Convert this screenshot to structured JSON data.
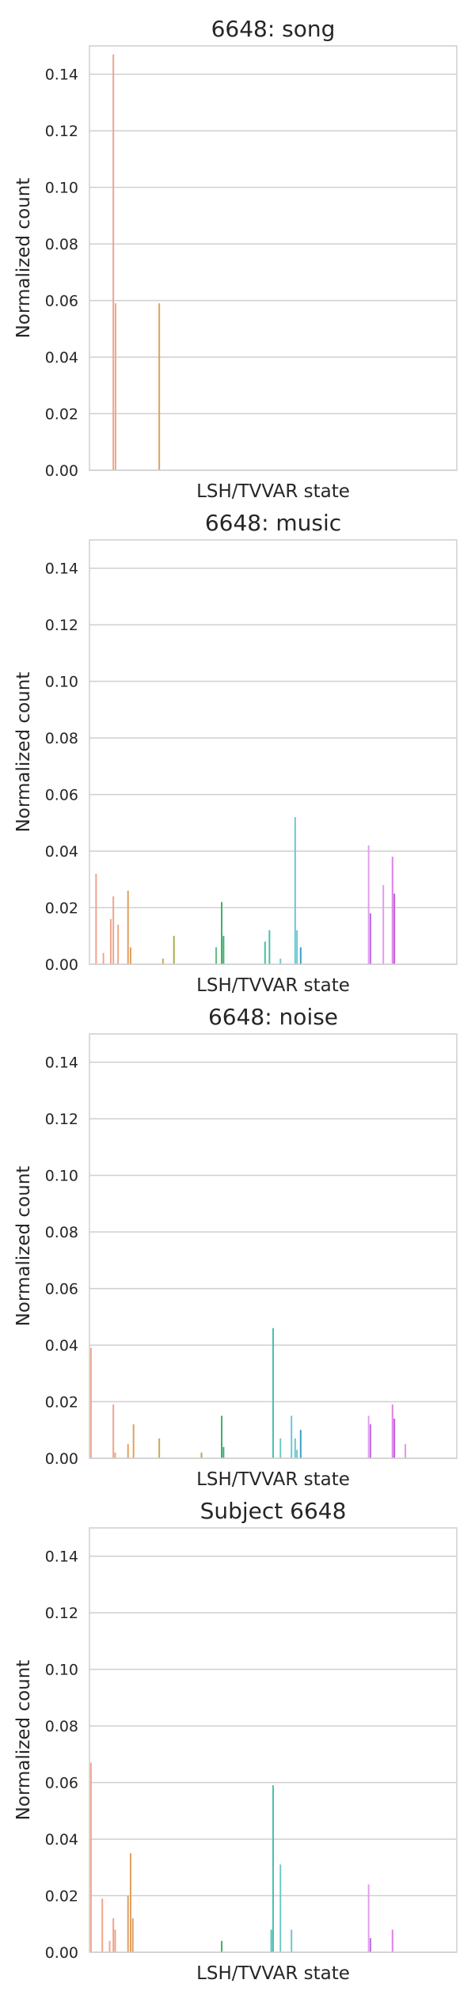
{
  "chart_data": [
    {
      "type": "bar",
      "title": "6648: song",
      "xlabel": "LSH/TVVAR state",
      "ylabel": "Normalized count",
      "ylim": [
        0,
        0.15
      ],
      "yticks": [
        "0.00",
        "0.02",
        "0.04",
        "0.06",
        "0.08",
        "0.10",
        "0.12",
        "0.14"
      ],
      "grid": true,
      "series": [
        {
          "x": 0.065,
          "value": 0.147,
          "color": "#f0a58c"
        },
        {
          "x": 0.071,
          "value": 0.059,
          "color": "#f0a58c"
        },
        {
          "x": 0.19,
          "value": 0.059,
          "color": "#e0a060"
        }
      ]
    },
    {
      "type": "bar",
      "title": "6648: music",
      "xlabel": "LSH/TVVAR state",
      "ylabel": "Normalized count",
      "ylim": [
        0,
        0.15
      ],
      "yticks": [
        "0.00",
        "0.02",
        "0.04",
        "0.06",
        "0.08",
        "0.10",
        "0.12",
        "0.14"
      ],
      "grid": true,
      "series": [
        {
          "x": 0.018,
          "value": 0.032,
          "color": "#f0a58c"
        },
        {
          "x": 0.038,
          "value": 0.004,
          "color": "#f0a58c"
        },
        {
          "x": 0.058,
          "value": 0.016,
          "color": "#f0a58c"
        },
        {
          "x": 0.065,
          "value": 0.024,
          "color": "#f0a58c"
        },
        {
          "x": 0.078,
          "value": 0.014,
          "color": "#f0a58c"
        },
        {
          "x": 0.105,
          "value": 0.026,
          "color": "#e0a060"
        },
        {
          "x": 0.112,
          "value": 0.006,
          "color": "#e0a060"
        },
        {
          "x": 0.2,
          "value": 0.002,
          "color": "#c9a85a"
        },
        {
          "x": 0.23,
          "value": 0.01,
          "color": "#a8ad4e"
        },
        {
          "x": 0.345,
          "value": 0.006,
          "color": "#5cbf78"
        },
        {
          "x": 0.36,
          "value": 0.022,
          "color": "#3daf6a"
        },
        {
          "x": 0.365,
          "value": 0.01,
          "color": "#3daf6a"
        },
        {
          "x": 0.478,
          "value": 0.008,
          "color": "#4cbfa8"
        },
        {
          "x": 0.49,
          "value": 0.012,
          "color": "#4cbfa8"
        },
        {
          "x": 0.52,
          "value": 0.002,
          "color": "#6cc8c8"
        },
        {
          "x": 0.56,
          "value": 0.052,
          "color": "#6cc8d0"
        },
        {
          "x": 0.565,
          "value": 0.012,
          "color": "#6cc8d0"
        },
        {
          "x": 0.575,
          "value": 0.006,
          "color": "#3aa0c8"
        },
        {
          "x": 0.76,
          "value": 0.042,
          "color": "#e09ef0"
        },
        {
          "x": 0.765,
          "value": 0.018,
          "color": "#c070e0"
        },
        {
          "x": 0.8,
          "value": 0.028,
          "color": "#e09ef0"
        },
        {
          "x": 0.825,
          "value": 0.038,
          "color": "#e080e8"
        },
        {
          "x": 0.83,
          "value": 0.025,
          "color": "#c060d8"
        }
      ]
    },
    {
      "type": "bar",
      "title": "6648: noise",
      "xlabel": "LSH/TVVAR state",
      "ylabel": "Normalized count",
      "ylim": [
        0,
        0.15
      ],
      "yticks": [
        "0.00",
        "0.02",
        "0.04",
        "0.06",
        "0.08",
        "0.10",
        "0.12",
        "0.14"
      ],
      "grid": true,
      "series": [
        {
          "x": 0.004,
          "value": 0.039,
          "color": "#f0a58c"
        },
        {
          "x": 0.065,
          "value": 0.019,
          "color": "#f0a58c"
        },
        {
          "x": 0.07,
          "value": 0.002,
          "color": "#f0a58c"
        },
        {
          "x": 0.105,
          "value": 0.005,
          "color": "#e0a060"
        },
        {
          "x": 0.12,
          "value": 0.012,
          "color": "#e0a060"
        },
        {
          "x": 0.19,
          "value": 0.007,
          "color": "#c9a85a"
        },
        {
          "x": 0.305,
          "value": 0.002,
          "color": "#a8ad4e"
        },
        {
          "x": 0.36,
          "value": 0.015,
          "color": "#3daf6a"
        },
        {
          "x": 0.365,
          "value": 0.004,
          "color": "#3daf6a"
        },
        {
          "x": 0.5,
          "value": 0.046,
          "color": "#4cbfb0"
        },
        {
          "x": 0.52,
          "value": 0.007,
          "color": "#6cc8c8"
        },
        {
          "x": 0.55,
          "value": 0.015,
          "color": "#6cc8d0"
        },
        {
          "x": 0.56,
          "value": 0.007,
          "color": "#6cc8d0"
        },
        {
          "x": 0.565,
          "value": 0.003,
          "color": "#6cc8d0"
        },
        {
          "x": 0.575,
          "value": 0.01,
          "color": "#3aa0c8"
        },
        {
          "x": 0.76,
          "value": 0.015,
          "color": "#e09ef0"
        },
        {
          "x": 0.765,
          "value": 0.012,
          "color": "#c070e0"
        },
        {
          "x": 0.825,
          "value": 0.019,
          "color": "#e080e8"
        },
        {
          "x": 0.83,
          "value": 0.014,
          "color": "#c060d8"
        },
        {
          "x": 0.86,
          "value": 0.005,
          "color": "#f090e0"
        }
      ]
    },
    {
      "type": "bar",
      "title": "Subject 6648",
      "xlabel": "LSH/TVVAR state",
      "ylabel": "Normalized count",
      "ylim": [
        0,
        0.15
      ],
      "yticks": [
        "0.00",
        "0.02",
        "0.04",
        "0.06",
        "0.08",
        "0.10",
        "0.12",
        "0.14"
      ],
      "grid": true,
      "series": [
        {
          "x": 0.004,
          "value": 0.067,
          "color": "#f0a58c"
        },
        {
          "x": 0.035,
          "value": 0.019,
          "color": "#f0a58c"
        },
        {
          "x": 0.055,
          "value": 0.004,
          "color": "#f0a58c"
        },
        {
          "x": 0.065,
          "value": 0.012,
          "color": "#f0a58c"
        },
        {
          "x": 0.07,
          "value": 0.008,
          "color": "#f0a58c"
        },
        {
          "x": 0.105,
          "value": 0.02,
          "color": "#e0a060"
        },
        {
          "x": 0.112,
          "value": 0.035,
          "color": "#e0a060"
        },
        {
          "x": 0.118,
          "value": 0.012,
          "color": "#e0a060"
        },
        {
          "x": 0.36,
          "value": 0.004,
          "color": "#3daf6a"
        },
        {
          "x": 0.495,
          "value": 0.008,
          "color": "#4cbfb0"
        },
        {
          "x": 0.5,
          "value": 0.059,
          "color": "#4cbfb0"
        },
        {
          "x": 0.52,
          "value": 0.031,
          "color": "#6cc8c8"
        },
        {
          "x": 0.55,
          "value": 0.008,
          "color": "#6cc8d0"
        },
        {
          "x": 0.76,
          "value": 0.024,
          "color": "#e09ef0"
        },
        {
          "x": 0.765,
          "value": 0.005,
          "color": "#c070e0"
        },
        {
          "x": 0.825,
          "value": 0.008,
          "color": "#e080e8"
        }
      ]
    }
  ],
  "style": {
    "grid_color": "#cfcfcf",
    "spine_color": "#cfcfcf",
    "text_color": "#262626"
  }
}
